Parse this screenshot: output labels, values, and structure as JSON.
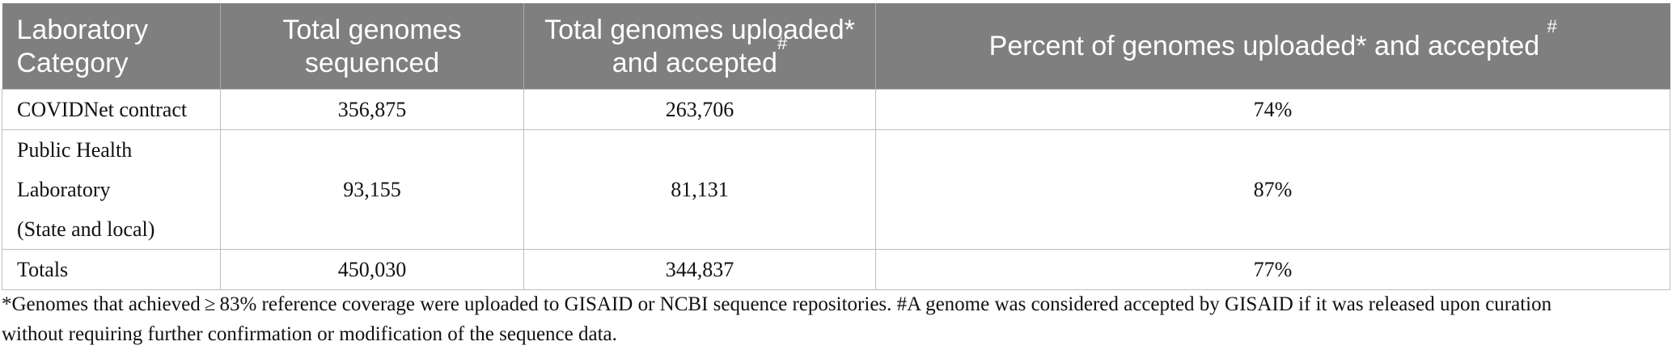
{
  "table": {
    "headers": [
      {
        "text": "Laboratory Category",
        "sup": ""
      },
      {
        "text": "Total genomes sequenced",
        "sup": ""
      },
      {
        "text": "Total genomes uploaded* and accepted",
        "sup": "#"
      },
      {
        "text": "Percent of genomes uploaded* and accepted",
        "sup": "#"
      }
    ],
    "rows": [
      {
        "category": "COVIDNet contract",
        "sequenced": "356,875",
        "accepted": "263,706",
        "percent": "74%"
      },
      {
        "category_line1": "Public Health Laboratory",
        "category_line2": "(State and local)",
        "sequenced": "93,155",
        "accepted": "81,131",
        "percent": "87%"
      },
      {
        "category": "Totals",
        "sequenced": "450,030",
        "accepted": "344,837",
        "percent": "77%"
      }
    ]
  },
  "footnote": {
    "line1": "*Genomes that achieved ≥ 83% reference coverage were uploaded to GISAID or NCBI sequence repositories. #A genome was considered accepted by GISAID if it was released upon curation",
    "line2": "without requiring further confirmation or modification of the sequence data."
  }
}
